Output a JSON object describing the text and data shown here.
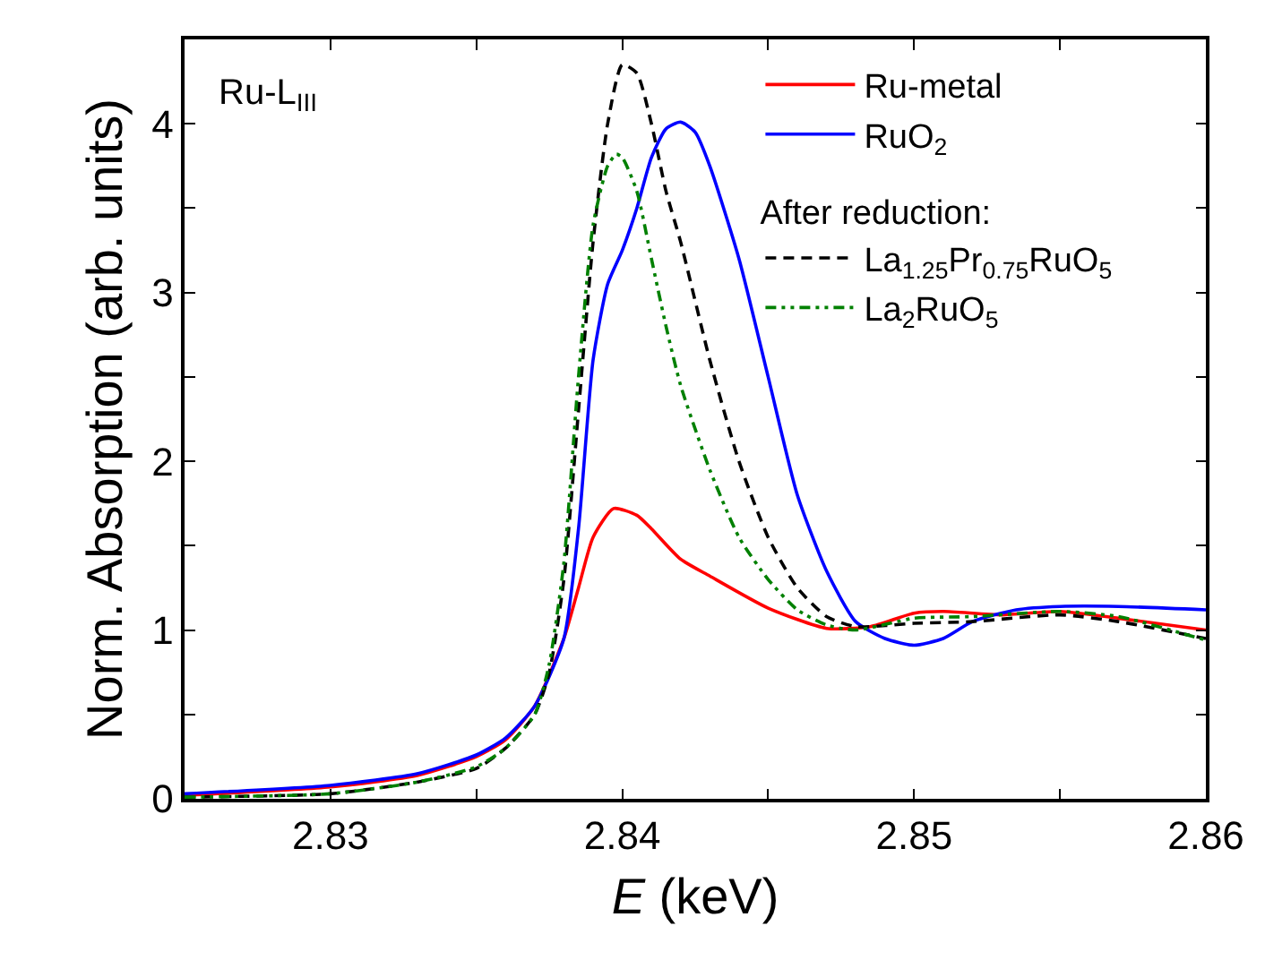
{
  "chart_data": {
    "type": "line",
    "xlabel": "E (keV)",
    "ylabel": "Norm. Absorption (arb. units)",
    "legend_title": "After reduction:",
    "legend": "top right",
    "marker": "none",
    "annotations": [
      "Ru-L$_{III}$"
    ],
    "xlim": [
      2.825,
      2.86
    ],
    "xticks": [
      {
        "value": 2.825,
        "label": null
      },
      2.83,
      {
        "value": 2.835,
        "label": null
      },
      2.84,
      {
        "value": 2.845,
        "label": null
      },
      2.85,
      {
        "value": 2.855,
        "label": null
      },
      2.86
    ],
    "ylim": [
      0,
      4.5
    ],
    "yticks": [
      0,
      {
        "value": 0.5,
        "label": null
      },
      1,
      {
        "value": 1.5,
        "label": null
      },
      2,
      {
        "value": 2.5,
        "label": null
      },
      3,
      {
        "value": 3.5,
        "label": null
      },
      4
    ],
    "series": [
      {
        "name": "Ru-metal",
        "color": "#ff0000",
        "line_style": "solid",
        "x": [
          2.825,
          2.83,
          2.833,
          2.835,
          2.836,
          2.837,
          2.838,
          2.8385,
          2.839,
          2.8397,
          2.8405,
          2.841,
          2.842,
          2.843,
          2.845,
          2.847,
          2.8485,
          2.85,
          2.851,
          2.853,
          2.855,
          2.857,
          2.86
        ],
        "values": [
          0.02,
          0.07,
          0.14,
          0.25,
          0.35,
          0.55,
          0.95,
          1.25,
          1.55,
          1.72,
          1.68,
          1.6,
          1.42,
          1.32,
          1.13,
          1.01,
          1.02,
          1.1,
          1.11,
          1.09,
          1.11,
          1.07,
          1.0
        ]
      },
      {
        "name": "RuO$_{2}$",
        "color": "#0000ff",
        "line_style": "solid",
        "x": [
          2.825,
          2.83,
          2.833,
          2.835,
          2.836,
          2.837,
          2.838,
          2.8385,
          2.839,
          2.8395,
          2.84,
          2.8405,
          2.841,
          2.8415,
          2.842,
          2.8425,
          2.843,
          2.844,
          2.845,
          2.846,
          2.847,
          2.848,
          2.849,
          2.85,
          2.851,
          2.852,
          2.8535,
          2.855,
          2.857,
          2.86
        ],
        "values": [
          0.03,
          0.08,
          0.15,
          0.26,
          0.36,
          0.55,
          0.95,
          1.6,
          2.6,
          3.05,
          3.25,
          3.5,
          3.8,
          3.97,
          4.01,
          3.95,
          3.75,
          3.2,
          2.5,
          1.8,
          1.35,
          1.05,
          0.95,
          0.91,
          0.95,
          1.05,
          1.12,
          1.14,
          1.14,
          1.12
        ]
      },
      {
        "name": "La$_{1.25}$Pr$_{0.75}$RuO$_{5}$",
        "color": "#000000",
        "line_style": "dashed",
        "x": [
          2.825,
          2.83,
          2.833,
          2.835,
          2.836,
          2.837,
          2.8375,
          2.838,
          2.8385,
          2.839,
          2.8395,
          2.84,
          2.8405,
          2.841,
          2.8415,
          2.842,
          2.843,
          2.844,
          2.845,
          2.846,
          2.847,
          2.848,
          2.85,
          2.852,
          2.855,
          2.857,
          2.86
        ],
        "values": [
          0.01,
          0.03,
          0.1,
          0.18,
          0.3,
          0.5,
          0.75,
          1.3,
          2.3,
          3.3,
          4.0,
          4.35,
          4.3,
          4.0,
          3.6,
          3.3,
          2.6,
          2.0,
          1.55,
          1.25,
          1.08,
          1.02,
          1.04,
          1.05,
          1.09,
          1.05,
          0.95
        ]
      },
      {
        "name": "La$_{2}$RuO$_{5}$",
        "color": "#008000",
        "line_style": "dashdotdot",
        "x": [
          2.825,
          2.83,
          2.833,
          2.835,
          2.836,
          2.837,
          2.8375,
          2.838,
          2.8385,
          2.839,
          2.8395,
          2.8398,
          2.84,
          2.8405,
          2.841,
          2.8415,
          2.842,
          2.843,
          2.844,
          2.845,
          2.846,
          2.847,
          2.848,
          2.85,
          2.852,
          2.855,
          2.857,
          2.86
        ],
        "values": [
          0.01,
          0.03,
          0.1,
          0.19,
          0.3,
          0.5,
          0.8,
          1.4,
          2.5,
          3.4,
          3.75,
          3.82,
          3.8,
          3.6,
          3.2,
          2.8,
          2.45,
          1.95,
          1.55,
          1.3,
          1.12,
          1.03,
          1.0,
          1.07,
          1.08,
          1.11,
          1.08,
          0.94
        ]
      }
    ]
  }
}
